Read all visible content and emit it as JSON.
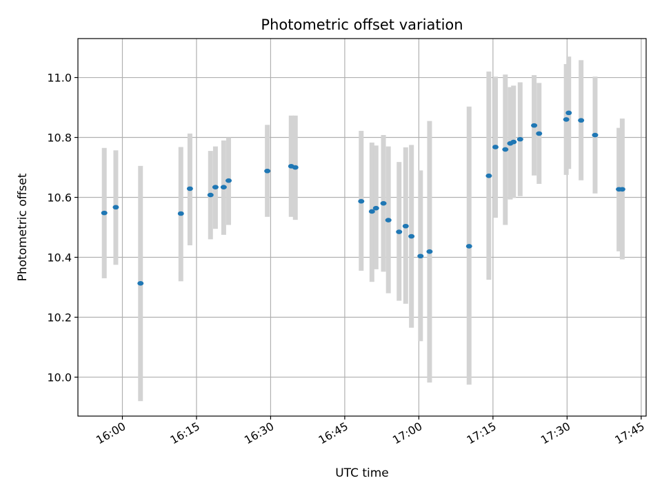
{
  "chart_data": {
    "type": "scatter",
    "title": "Photometric offset variation",
    "xlabel": "UTC time",
    "ylabel": "Photometric offset",
    "xlim": [
      "15:51",
      "17:46"
    ],
    "ylim": [
      9.87,
      11.13
    ],
    "grid": true,
    "x_ticks": [
      {
        "time": "16:00",
        "label": "16:00"
      },
      {
        "time": "16:15",
        "label": "16:15"
      },
      {
        "time": "16:30",
        "label": "16:30"
      },
      {
        "time": "16:45",
        "label": "16:45"
      },
      {
        "time": "17:00",
        "label": "17:00"
      },
      {
        "time": "17:15",
        "label": "17:15"
      },
      {
        "time": "17:30",
        "label": "17:30"
      },
      {
        "time": "17:45",
        "label": "17:45"
      }
    ],
    "y_ticks": [
      {
        "value": 10.0,
        "label": "10.0"
      },
      {
        "value": 10.2,
        "label": "10.2"
      },
      {
        "value": 10.4,
        "label": "10.4"
      },
      {
        "value": 10.6,
        "label": "10.6"
      },
      {
        "value": 10.8,
        "label": "10.8"
      },
      {
        "value": 11.0,
        "label": "11.0"
      }
    ],
    "colors": {
      "points": "#1f77b4",
      "error_bars": "#d3d3d3",
      "grid": "#b0b0b0"
    },
    "points": [
      {
        "x": "15:56:20",
        "y": 10.548,
        "low": 10.33,
        "high": 10.765
      },
      {
        "x": "15:58:40",
        "y": 10.567,
        "low": 10.375,
        "high": 10.757
      },
      {
        "x": "16:03:40",
        "y": 10.313,
        "low": 9.92,
        "high": 10.705
      },
      {
        "x": "16:11:50",
        "y": 10.546,
        "low": 10.32,
        "high": 10.768
      },
      {
        "x": "16:13:40",
        "y": 10.629,
        "low": 10.44,
        "high": 10.813
      },
      {
        "x": "16:17:50",
        "y": 10.608,
        "low": 10.46,
        "high": 10.755
      },
      {
        "x": "16:18:50",
        "y": 10.634,
        "low": 10.495,
        "high": 10.77
      },
      {
        "x": "16:20:30",
        "y": 10.634,
        "low": 10.475,
        "high": 10.79
      },
      {
        "x": "16:21:30",
        "y": 10.656,
        "low": 10.508,
        "high": 10.8
      },
      {
        "x": "16:29:20",
        "y": 10.688,
        "low": 10.535,
        "high": 10.842
      },
      {
        "x": "16:34:10",
        "y": 10.704,
        "low": 10.535,
        "high": 10.873
      },
      {
        "x": "16:35:00",
        "y": 10.7,
        "low": 10.525,
        "high": 10.873
      },
      {
        "x": "16:48:20",
        "y": 10.587,
        "low": 10.355,
        "high": 10.822
      },
      {
        "x": "16:50:30",
        "y": 10.553,
        "low": 10.318,
        "high": 10.783
      },
      {
        "x": "16:51:20",
        "y": 10.564,
        "low": 10.36,
        "high": 10.773
      },
      {
        "x": "16:52:50",
        "y": 10.58,
        "low": 10.352,
        "high": 10.808
      },
      {
        "x": "16:53:50",
        "y": 10.524,
        "low": 10.28,
        "high": 10.77
      },
      {
        "x": "16:56:00",
        "y": 10.485,
        "low": 10.255,
        "high": 10.718
      },
      {
        "x": "16:57:20",
        "y": 10.504,
        "low": 10.245,
        "high": 10.767
      },
      {
        "x": "16:58:30",
        "y": 10.47,
        "low": 10.165,
        "high": 10.775
      },
      {
        "x": "17:00:20",
        "y": 10.404,
        "low": 10.12,
        "high": 10.69
      },
      {
        "x": "17:02:10",
        "y": 10.419,
        "low": 9.982,
        "high": 10.855
      },
      {
        "x": "17:10:10",
        "y": 10.437,
        "low": 9.975,
        "high": 10.903
      },
      {
        "x": "17:14:10",
        "y": 10.672,
        "low": 10.325,
        "high": 11.02
      },
      {
        "x": "17:15:30",
        "y": 10.768,
        "low": 10.532,
        "high": 11.003
      },
      {
        "x": "17:17:30",
        "y": 10.76,
        "low": 10.508,
        "high": 11.01
      },
      {
        "x": "17:18:30",
        "y": 10.78,
        "low": 10.593,
        "high": 10.968
      },
      {
        "x": "17:19:10",
        "y": 10.785,
        "low": 10.598,
        "high": 10.973
      },
      {
        "x": "17:20:30",
        "y": 10.794,
        "low": 10.604,
        "high": 10.984
      },
      {
        "x": "17:23:20",
        "y": 10.84,
        "low": 10.673,
        "high": 11.008
      },
      {
        "x": "17:24:20",
        "y": 10.813,
        "low": 10.645,
        "high": 10.982
      },
      {
        "x": "17:29:50",
        "y": 10.86,
        "low": 10.675,
        "high": 11.045
      },
      {
        "x": "17:30:20",
        "y": 10.882,
        "low": 10.695,
        "high": 11.07
      },
      {
        "x": "17:32:50",
        "y": 10.857,
        "low": 10.657,
        "high": 11.058
      },
      {
        "x": "17:35:40",
        "y": 10.808,
        "low": 10.613,
        "high": 11.003
      },
      {
        "x": "17:40:30",
        "y": 10.627,
        "low": 10.42,
        "high": 10.832
      },
      {
        "x": "17:41:10",
        "y": 10.627,
        "low": 10.393,
        "high": 10.863
      }
    ]
  }
}
